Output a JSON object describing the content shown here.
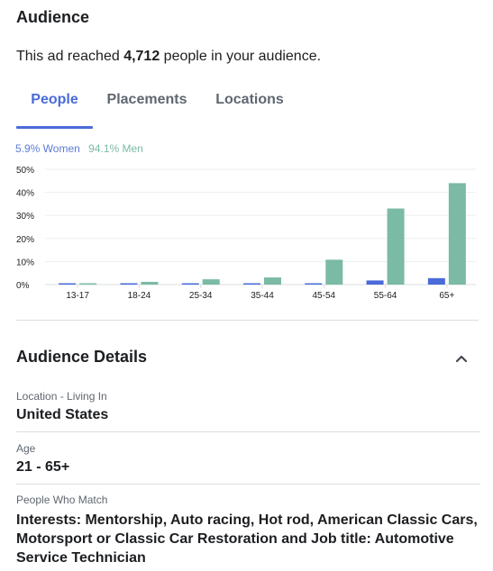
{
  "header": {
    "title": "Audience",
    "reach_prefix": "This ad reached ",
    "reach_count": "4,712",
    "reach_suffix": " people in your audience."
  },
  "tabs": [
    {
      "label": "People",
      "active": true
    },
    {
      "label": "Placements",
      "active": false
    },
    {
      "label": "Locations",
      "active": false
    }
  ],
  "legend": {
    "women": "5.9% Women",
    "men": "94.1% Men"
  },
  "colors": {
    "accent": "#4a6bd8",
    "women": "#4a6bd8",
    "men": "#7bbaa5"
  },
  "chart_data": {
    "type": "bar",
    "categories": [
      "13-17",
      "18-24",
      "25-34",
      "35-44",
      "45-54",
      "55-64",
      "65+"
    ],
    "series": [
      {
        "name": "Women",
        "values": [
          0.2,
          0.1,
          0.2,
          0.2,
          0.5,
          1.8,
          2.8
        ]
      },
      {
        "name": "Men",
        "values": [
          0.3,
          1.2,
          2.3,
          3.1,
          10.8,
          33.0,
          44.0
        ]
      }
    ],
    "yticks": [
      "50%",
      "40%",
      "30%",
      "20%",
      "10%",
      "0%"
    ],
    "ylim": [
      0,
      50
    ],
    "grid": true
  },
  "details": {
    "title": "Audience Details",
    "collapse_icon": "chevron-up-icon",
    "location_label": "Location - Living In",
    "location_value": "United States",
    "age_label": "Age",
    "age_value": "21 - 65+",
    "match_label": "People Who Match",
    "match_value": "Interests: Mentorship, Auto racing, Hot rod, American Classic Cars, Motorsport or Classic Car Restoration and Job title: Automotive Service Technician"
  }
}
